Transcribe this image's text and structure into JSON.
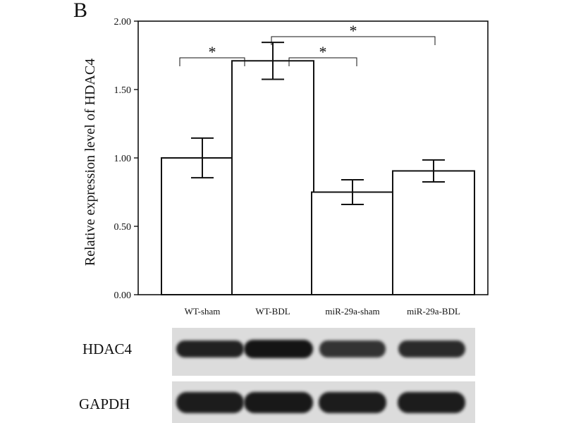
{
  "panel_letter": "B",
  "chart_data": {
    "type": "bar",
    "categories": [
      "WT-sham",
      "WT-BDL",
      "miR-29a-sham",
      "miR-29a-BDL"
    ],
    "values": [
      1.0,
      1.71,
      0.75,
      0.905
    ],
    "error": [
      0.145,
      0.135,
      0.09,
      0.08
    ],
    "ylabel": "Relative expression level  of HDAC4",
    "ylim": [
      0,
      2.0
    ],
    "yticks": [
      0,
      0.5,
      1.0,
      1.5,
      2.0
    ],
    "ytick_labels": [
      "0.00",
      "0.50",
      "1.00",
      "1.50",
      "2.00"
    ],
    "significance": [
      {
        "from": 0,
        "to": 1,
        "label": "*"
      },
      {
        "from": 1,
        "to": 2,
        "label": "*"
      },
      {
        "from": 1,
        "to": 3,
        "label": "*"
      }
    ],
    "bar_color": "#ffffff",
    "line_color": "#111111"
  },
  "blots": [
    {
      "label": "HDAC4",
      "band_intensity": [
        0.85,
        1.0,
        0.65,
        0.75
      ]
    },
    {
      "label": "GAPDH",
      "band_intensity": [
        0.9,
        0.95,
        0.9,
        0.9
      ]
    }
  ]
}
